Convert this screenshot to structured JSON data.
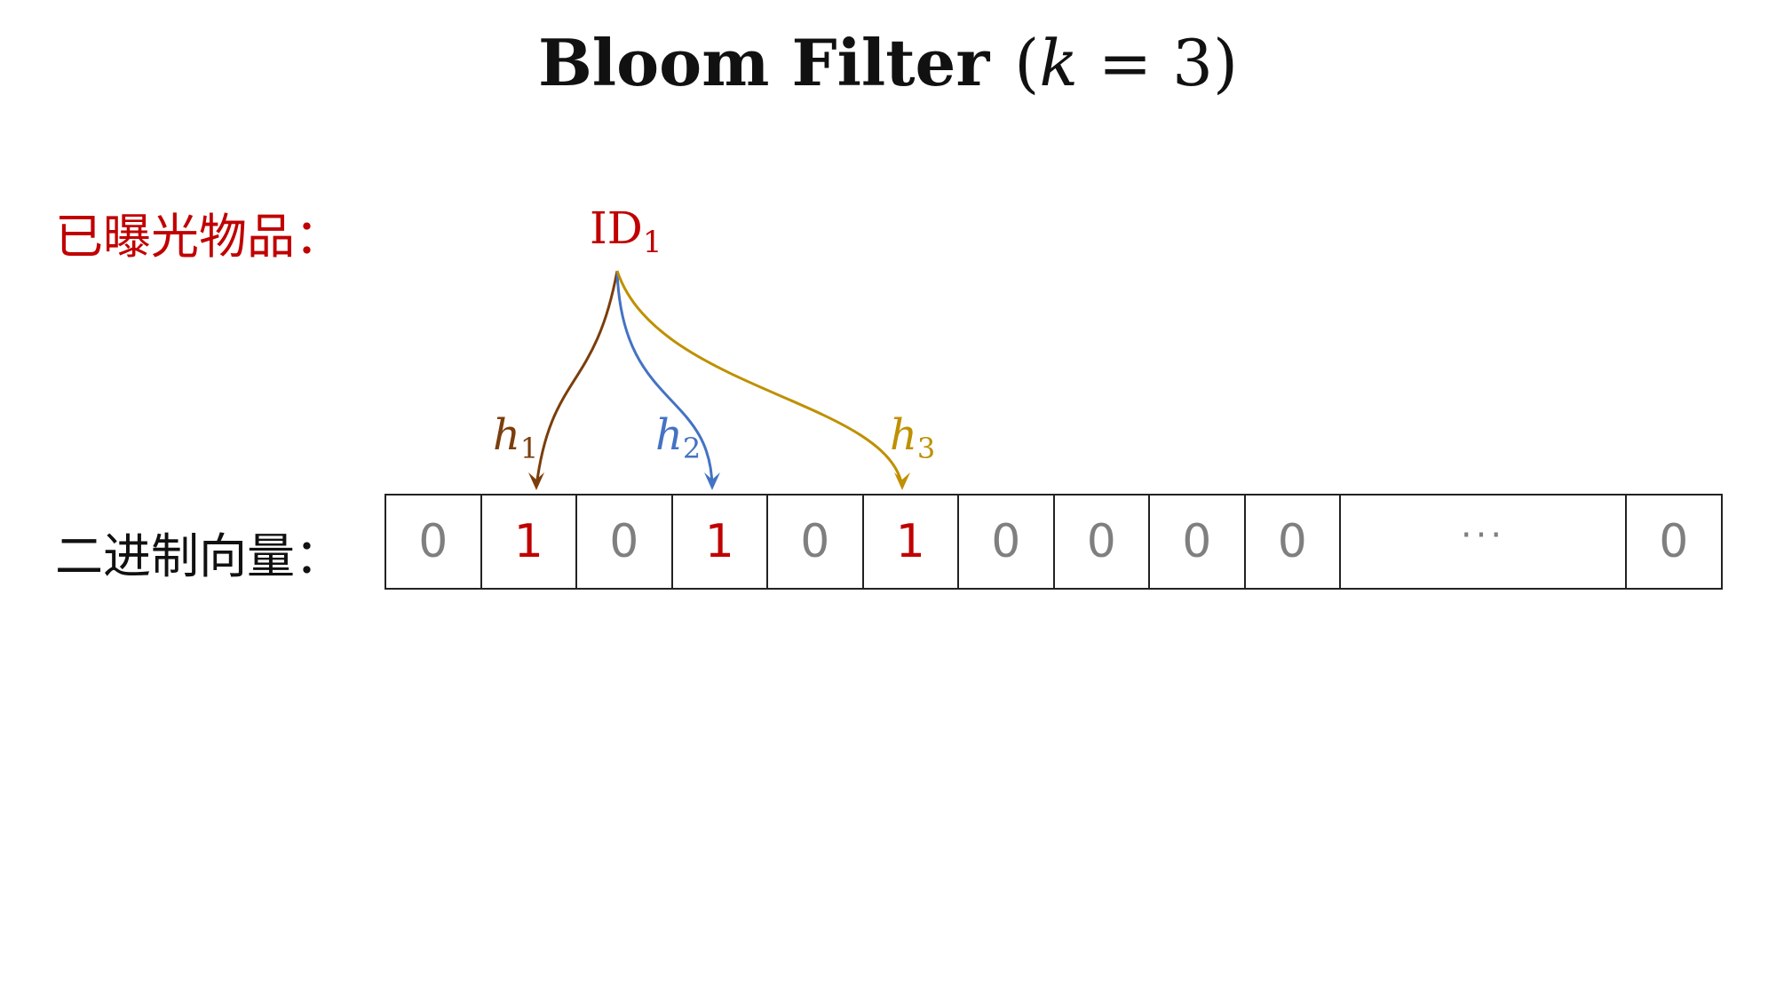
{
  "title": {
    "text": "Bloom  Filter",
    "param_var": "k",
    "param_eq": " = 3"
  },
  "labels": {
    "exposed": "已曝光物品：",
    "vector": "二进制向量："
  },
  "item": {
    "name": "ID",
    "subscript": "1"
  },
  "hashes": [
    {
      "name": "h",
      "subscript": "1",
      "color": "#7a3e0c",
      "target_cell": 1
    },
    {
      "name": "h",
      "subscript": "2",
      "color": "#4472c4",
      "target_cell": 3
    },
    {
      "name": "h",
      "subscript": "3",
      "color": "#bf9000",
      "target_cell": 5
    }
  ],
  "cells": [
    "0",
    "1",
    "0",
    "1",
    "0",
    "1",
    "0",
    "0",
    "0",
    "0",
    "···",
    "0"
  ],
  "colors": {
    "set_bit": "#c00000",
    "unset_bit": "#7f7f7f",
    "label_red": "#c00000"
  }
}
